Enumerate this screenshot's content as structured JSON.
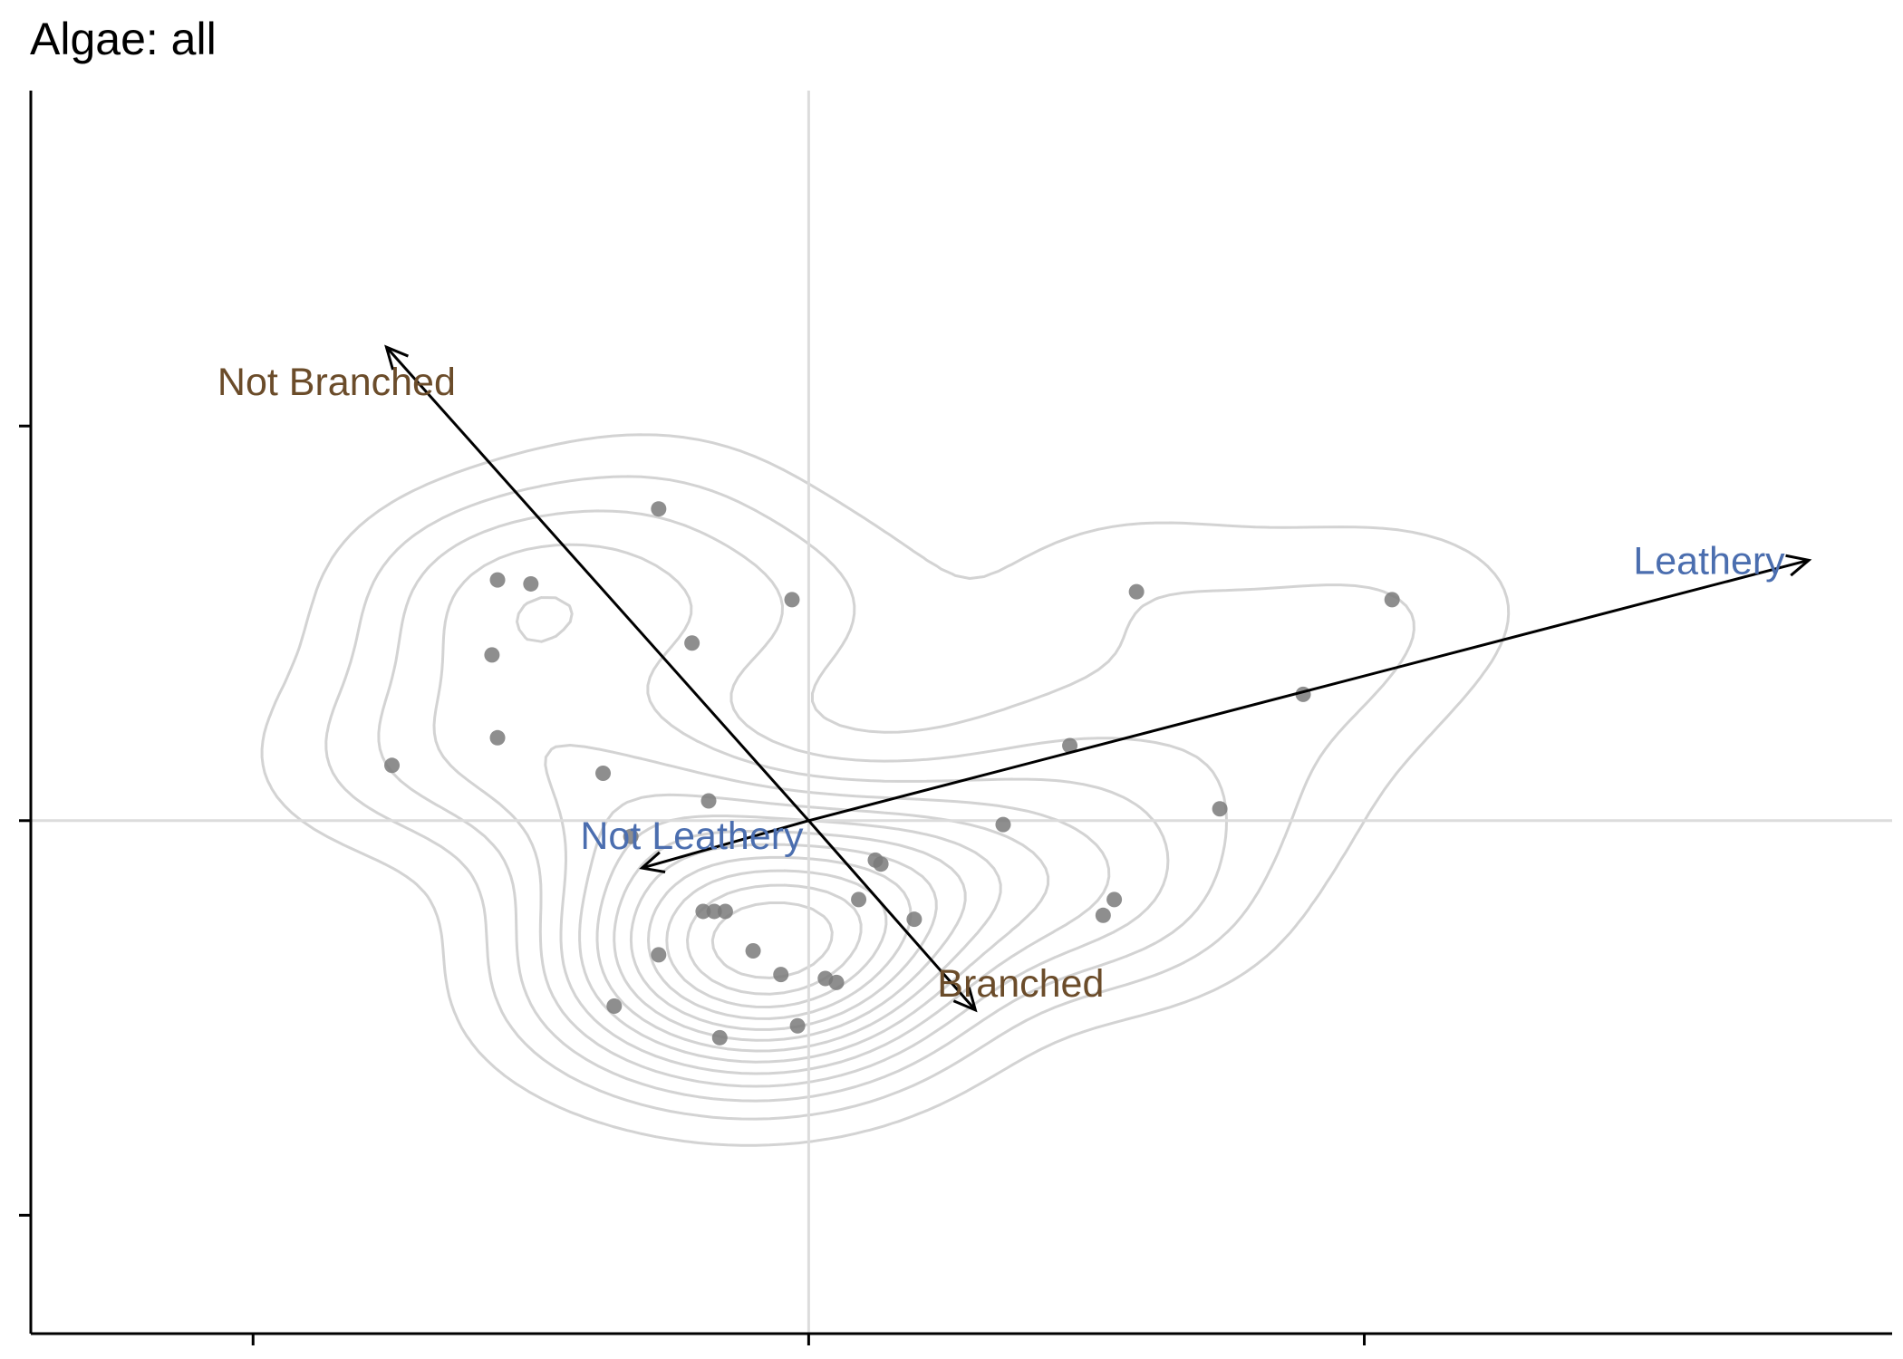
{
  "chart_data": {
    "type": "scatter",
    "title": "Algae: all",
    "xlabel": "",
    "ylabel": "",
    "xlim": [
      -1.4,
      1.95
    ],
    "ylim": [
      -1.3,
      1.85
    ],
    "x_ticks": [
      -1,
      0,
      1
    ],
    "y_ticks": [
      -1,
      0,
      1
    ],
    "tick_labels_shown": false,
    "reference_lines": {
      "x": 0,
      "y": 0
    },
    "grid": false,
    "points": [
      [
        -0.27,
        0.79
      ],
      [
        -0.56,
        0.61
      ],
      [
        -0.5,
        0.6
      ],
      [
        -0.57,
        0.42
      ],
      [
        -0.21,
        0.45
      ],
      [
        -0.03,
        0.56
      ],
      [
        -0.56,
        0.21
      ],
      [
        -0.75,
        0.14
      ],
      [
        -0.37,
        0.12
      ],
      [
        -0.18,
        0.05
      ],
      [
        -0.32,
        -0.04
      ],
      [
        0.59,
        0.58
      ],
      [
        1.05,
        0.56
      ],
      [
        0.89,
        0.32
      ],
      [
        0.47,
        0.19
      ],
      [
        0.74,
        0.03
      ],
      [
        0.35,
        -0.01
      ],
      [
        0.13,
        -0.11
      ],
      [
        0.12,
        -0.1
      ],
      [
        0.09,
        -0.2
      ],
      [
        0.19,
        -0.25
      ],
      [
        0.55,
        -0.2
      ],
      [
        0.53,
        -0.24
      ],
      [
        -0.19,
        -0.23
      ],
      [
        -0.17,
        -0.23
      ],
      [
        -0.15,
        -0.23
      ],
      [
        -0.1,
        -0.33
      ],
      [
        -0.27,
        -0.34
      ],
      [
        -0.05,
        -0.39
      ],
      [
        0.05,
        -0.41
      ],
      [
        0.03,
        -0.4
      ],
      [
        -0.35,
        -0.47
      ],
      [
        -0.02,
        -0.52
      ],
      [
        -0.16,
        -0.55
      ]
    ],
    "point_color": "#7a7a7a",
    "density_contours": true,
    "contour_color": "#d3d3d3",
    "vectors": [
      {
        "label": "Leathery",
        "x": 1.8,
        "y": 0.66,
        "color": "#4b6eaf"
      },
      {
        "label": "Not Leathery",
        "x": -0.3,
        "y": -0.12,
        "color": "#4b6eaf"
      },
      {
        "label": "Not Branched",
        "x": -0.76,
        "y": 1.2,
        "color": "#6b4c2a"
      },
      {
        "label": "Branched",
        "x": 0.3,
        "y": -0.48,
        "color": "#6b4c2a"
      }
    ]
  }
}
